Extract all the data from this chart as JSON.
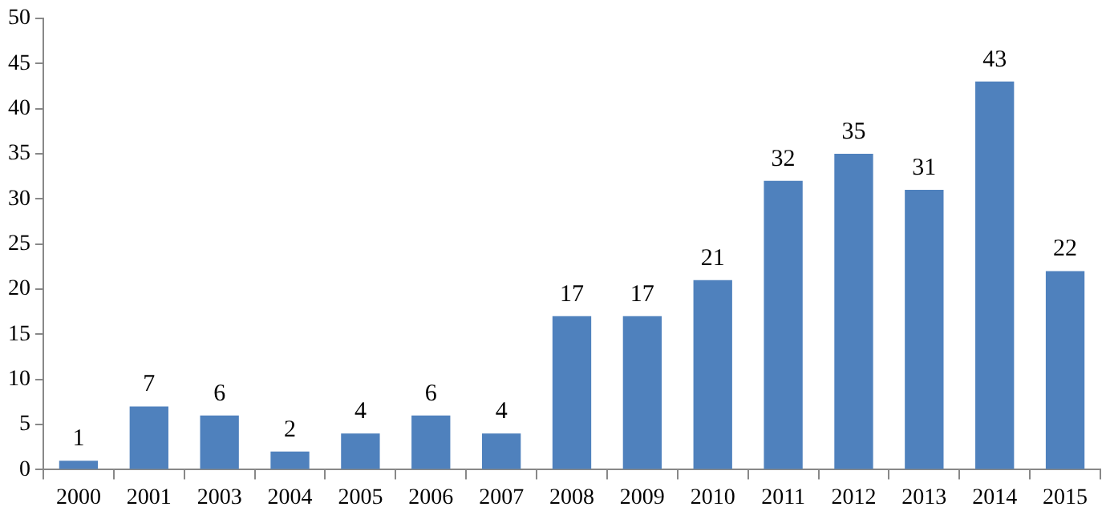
{
  "chart_data": {
    "type": "bar",
    "categories": [
      "2000",
      "2001",
      "2003",
      "2004",
      "2005",
      "2006",
      "2007",
      "2008",
      "2009",
      "2010",
      "2011",
      "2012",
      "2013",
      "2014",
      "2015"
    ],
    "values": [
      1,
      7,
      6,
      2,
      4,
      6,
      4,
      17,
      17,
      21,
      32,
      35,
      31,
      43,
      22
    ],
    "color": "#4f81bd",
    "ylim": [
      0,
      50
    ],
    "yticks": [
      0,
      5,
      10,
      15,
      20,
      25,
      30,
      35,
      40,
      45,
      50
    ],
    "grid": false,
    "legend": false,
    "data_labels": true
  }
}
